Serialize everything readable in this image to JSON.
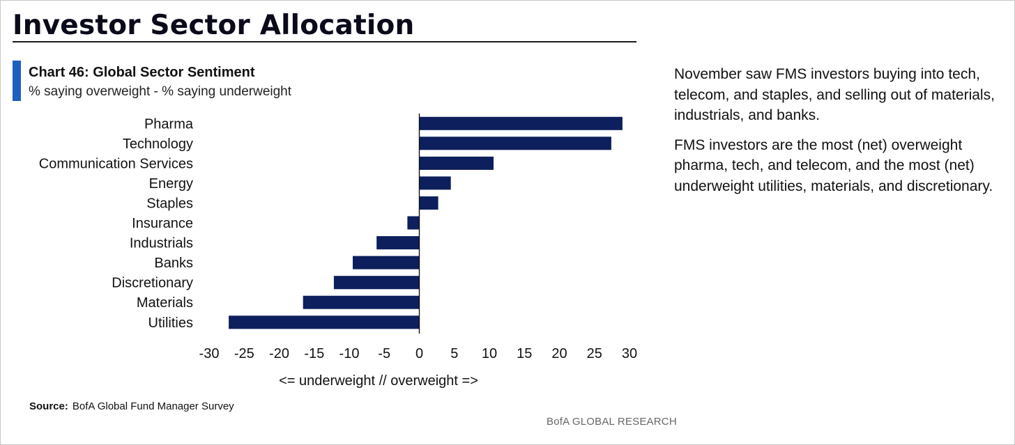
{
  "page": {
    "title": "Investor Sector Allocation"
  },
  "chart_header": {
    "title": "Chart 46: Global Sector Sentiment",
    "subtitle": "% saying overweight - % saying underweight"
  },
  "commentary": [
    "November saw FMS investors buying into tech, telecom, and staples, and selling out of materials, industrials, and banks.",
    "FMS investors are the most (net) overweight pharma, tech, and telecom, and the most (net) underweight utilities, materials, and discretionary."
  ],
  "source": {
    "label": "Source:",
    "text": "BofA Global Fund Manager Survey"
  },
  "brand": "BofA GLOBAL RESEARCH",
  "colors": {
    "bar": "#0d1f5c",
    "accent": "#1f5fbf"
  },
  "chart_data": {
    "type": "bar",
    "orientation": "horizontal",
    "title": "Chart 46: Global Sector Sentiment",
    "subtitle": "% saying overweight - % saying underweight",
    "xlabel": "<= underweight // overweight =>",
    "ylabel": "",
    "categories": [
      "Pharma",
      "Technology",
      "Communication Services",
      "Energy",
      "Staples",
      "Insurance",
      "Industrials",
      "Banks",
      "Discretionary",
      "Materials",
      "Utilities"
    ],
    "values": [
      29,
      27.4,
      10.6,
      4.5,
      2.7,
      -1.7,
      -6.1,
      -9.5,
      -12.2,
      -16.6,
      -27.2
    ],
    "xlim": [
      -30,
      30
    ],
    "xticks": [
      -30,
      -25,
      -20,
      -15,
      -10,
      -5,
      0,
      5,
      10,
      15,
      20,
      25,
      30
    ],
    "grid": false,
    "legend": "none"
  }
}
